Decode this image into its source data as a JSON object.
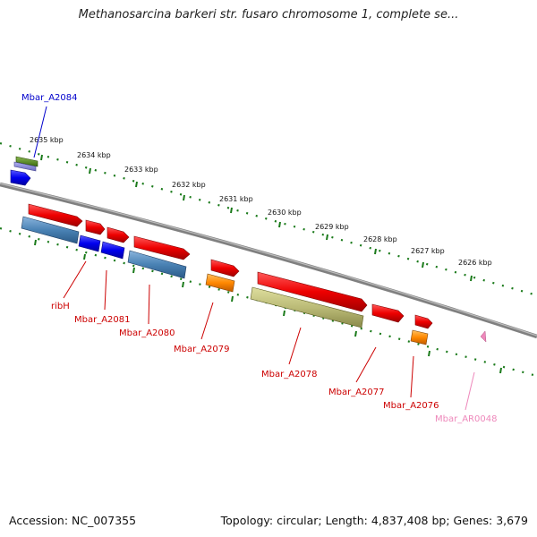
{
  "title": "Methanosarcina barkeri str. fusaro chromosome 1, complete se...",
  "footer": {
    "accession": "Accession: NC_007355",
    "summary": "Topology: circular; Length: 4,837,408 bp; Genes: 3,679"
  },
  "kbp_labels": [
    {
      "text": "2635 kbp"
    },
    {
      "text": "2634 kbp"
    },
    {
      "text": "2633 kbp"
    },
    {
      "text": "2632 kbp"
    },
    {
      "text": "2631 kbp"
    },
    {
      "text": "2630 kbp"
    },
    {
      "text": "2629 kbp"
    },
    {
      "text": "2628 kbp"
    },
    {
      "text": "2627 kbp"
    },
    {
      "text": "2626 kbp"
    }
  ],
  "gene_labels": [
    {
      "text": "Mbar_A2084",
      "color": "#0000cc"
    },
    {
      "text": "ribH",
      "color": "#cc0000"
    },
    {
      "text": "Mbar_A2081",
      "color": "#cc0000"
    },
    {
      "text": "Mbar_A2080",
      "color": "#cc0000"
    },
    {
      "text": "Mbar_A2079",
      "color": "#cc0000"
    },
    {
      "text": "Mbar_A2078",
      "color": "#cc0000"
    },
    {
      "text": "Mbar_A2077",
      "color": "#cc0000"
    },
    {
      "text": "Mbar_A2076",
      "color": "#cc0000"
    },
    {
      "text": "Mbar_AR0048",
      "color": "#ee88bb"
    }
  ],
  "colors": {
    "backbone": "#808080",
    "ticks": "#1a7a1a",
    "gene_red": "#ee0000",
    "gene_blue": "#0000ee",
    "gene_steel": "#4a82b4",
    "gene_orange": "#ff8800",
    "gene_olive": "#bbbb77",
    "gene_green": "#5a8a20",
    "gene_lavender": "#8888dd",
    "trna_pink": "#ee88bb"
  }
}
